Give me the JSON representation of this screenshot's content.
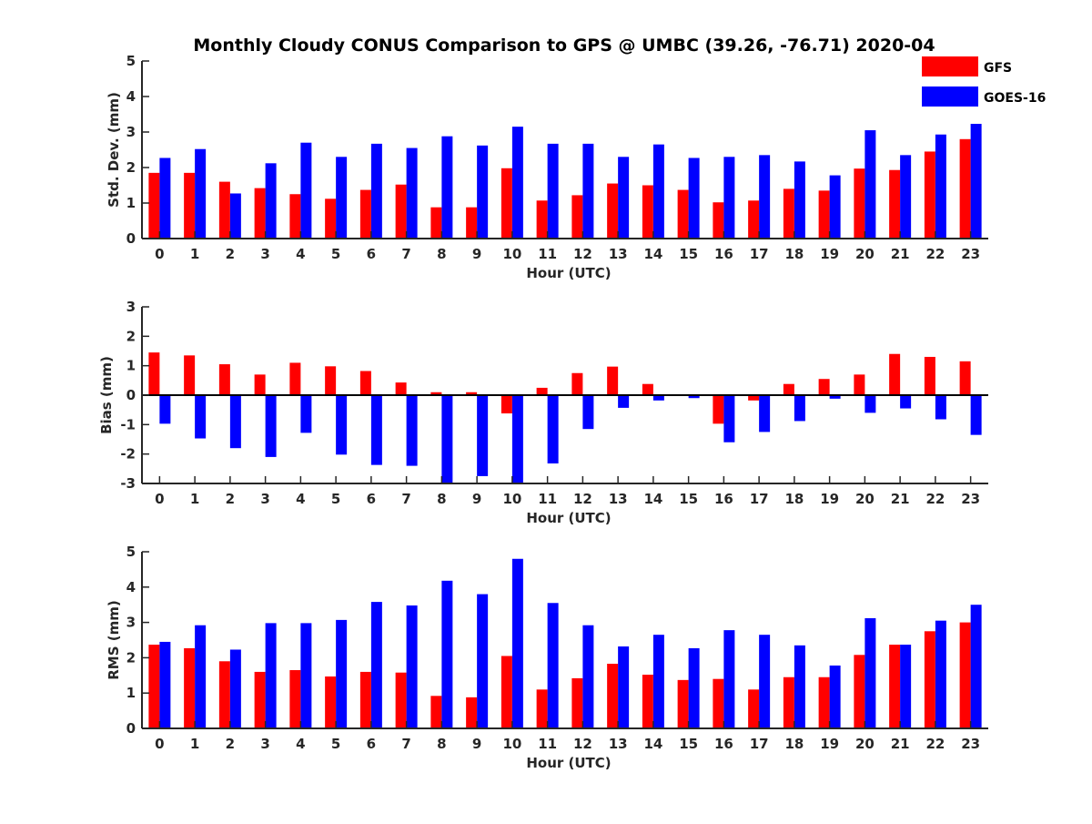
{
  "title": "Monthly Cloudy CONUS Comparison to GPS @ UMBC (39.26, -76.71) 2020-04",
  "legend": [
    {
      "label": "GFS",
      "color": "#ff0000"
    },
    {
      "label": "GOES-16",
      "color": "#0000ff"
    }
  ],
  "chart_data": [
    {
      "type": "bar",
      "title": "Monthly Cloudy CONUS Comparison to GPS @ UMBC (39.26, -76.71) 2020-04",
      "xlabel": "Hour (UTC)",
      "ylabel": "Std. Dev. (mm)",
      "ylim": [
        0,
        5
      ],
      "yticks": [
        "0",
        "1",
        "2",
        "3",
        "4",
        "5"
      ],
      "categories": [
        "0",
        "1",
        "2",
        "3",
        "4",
        "5",
        "6",
        "7",
        "8",
        "9",
        "10",
        "11",
        "12",
        "13",
        "14",
        "15",
        "16",
        "17",
        "18",
        "19",
        "20",
        "21",
        "22",
        "23"
      ],
      "series": [
        {
          "name": "GFS",
          "color": "#ff0000",
          "values": [
            1.85,
            1.85,
            1.6,
            1.42,
            1.25,
            1.12,
            1.37,
            1.52,
            0.88,
            0.88,
            1.98,
            1.07,
            1.22,
            1.55,
            1.5,
            1.37,
            1.02,
            1.07,
            1.4,
            1.35,
            1.97,
            1.93,
            2.45,
            2.8
          ]
        },
        {
          "name": "GOES-16",
          "color": "#0000ff",
          "values": [
            2.27,
            2.52,
            1.27,
            2.12,
            2.7,
            2.3,
            2.67,
            2.55,
            2.88,
            2.62,
            3.15,
            2.67,
            2.67,
            2.3,
            2.65,
            2.27,
            2.3,
            2.35,
            2.17,
            1.78,
            3.05,
            2.35,
            2.93,
            3.23
          ]
        }
      ]
    },
    {
      "type": "bar",
      "xlabel": "Hour (UTC)",
      "ylabel": "Bias (mm)",
      "ylim": [
        -3,
        3
      ],
      "yticks": [
        "-3",
        "-2",
        "-1",
        "0",
        "1",
        "2",
        "3"
      ],
      "categories": [
        "0",
        "1",
        "2",
        "3",
        "4",
        "5",
        "6",
        "7",
        "8",
        "9",
        "10",
        "11",
        "12",
        "13",
        "14",
        "15",
        "16",
        "17",
        "18",
        "19",
        "20",
        "21",
        "22",
        "23"
      ],
      "series": [
        {
          "name": "GFS",
          "color": "#ff0000",
          "values": [
            1.45,
            1.35,
            1.05,
            0.7,
            1.1,
            0.98,
            0.82,
            0.43,
            0.1,
            0.1,
            -0.62,
            0.25,
            0.75,
            0.97,
            0.38,
            -0.03,
            -0.97,
            -0.18,
            0.38,
            0.55,
            0.7,
            1.4,
            1.3,
            1.15
          ]
        },
        {
          "name": "GOES-16",
          "color": "#0000ff",
          "values": [
            -0.97,
            -1.47,
            -1.8,
            -2.1,
            -1.28,
            -2.02,
            -2.37,
            -2.4,
            -3.0,
            -2.75,
            -3.0,
            -2.32,
            -1.15,
            -0.43,
            -0.18,
            -0.1,
            -1.6,
            -1.25,
            -0.88,
            -0.12,
            -0.6,
            -0.45,
            -0.82,
            -1.35
          ]
        }
      ]
    },
    {
      "type": "bar",
      "xlabel": "Hour (UTC)",
      "ylabel": "RMS (mm)",
      "ylim": [
        0,
        5
      ],
      "yticks": [
        "0",
        "1",
        "2",
        "3",
        "4",
        "5"
      ],
      "categories": [
        "0",
        "1",
        "2",
        "3",
        "4",
        "5",
        "6",
        "7",
        "8",
        "9",
        "10",
        "11",
        "12",
        "13",
        "14",
        "15",
        "16",
        "17",
        "18",
        "19",
        "20",
        "21",
        "22",
        "23"
      ],
      "series": [
        {
          "name": "GFS",
          "color": "#ff0000",
          "values": [
            2.37,
            2.27,
            1.9,
            1.6,
            1.65,
            1.47,
            1.6,
            1.58,
            0.92,
            0.88,
            2.05,
            1.1,
            1.42,
            1.83,
            1.52,
            1.37,
            1.4,
            1.1,
            1.45,
            1.45,
            2.08,
            2.37,
            2.75,
            3.0
          ]
        },
        {
          "name": "GOES-16",
          "color": "#0000ff",
          "values": [
            2.45,
            2.92,
            2.23,
            2.98,
            2.98,
            3.07,
            3.58,
            3.48,
            4.18,
            3.8,
            4.8,
            3.55,
            2.92,
            2.32,
            2.65,
            2.27,
            2.78,
            2.65,
            2.35,
            1.78,
            3.12,
            2.37,
            3.05,
            3.5
          ]
        }
      ]
    }
  ]
}
